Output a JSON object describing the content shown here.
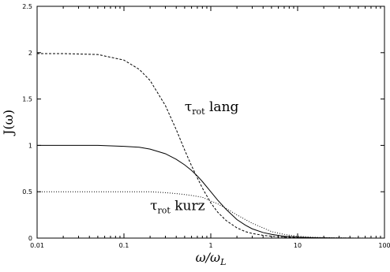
{
  "chart_data": {
    "type": "line",
    "xlabel": "ω/ω",
    "xlabel_sub": "L",
    "ylabel": "J(ω)",
    "xscale": "log",
    "xlim": [
      0.01,
      100
    ],
    "ylim": [
      0,
      2.5
    ],
    "xticks": [
      "0.01",
      "0.1",
      "1",
      "10",
      "100"
    ],
    "xtick_values": [
      0.01,
      0.1,
      1,
      10,
      100
    ],
    "yticks": [
      "0",
      "0.5",
      "1",
      "1.5",
      "2",
      "2.5"
    ],
    "ytick_values": [
      0,
      0.5,
      1,
      1.5,
      2,
      2.5
    ],
    "grid": false,
    "x": [
      0.01,
      0.02,
      0.05,
      0.1,
      0.15,
      0.2,
      0.3,
      0.4,
      0.5,
      0.6,
      0.7,
      0.8,
      1,
      1.2,
      1.5,
      2,
      2.5,
      3,
      4,
      5,
      7,
      10,
      15,
      20,
      30,
      50,
      100
    ],
    "series": [
      {
        "dash": "dashed",
        "values": [
          1.99,
          1.99,
          1.98,
          1.92,
          1.82,
          1.7,
          1.43,
          1.17,
          0.95,
          0.78,
          0.65,
          0.54,
          0.38,
          0.28,
          0.19,
          0.11,
          0.07,
          0.05,
          0.03,
          0.02,
          0.01,
          0.005,
          0.003,
          0.002,
          0.001,
          0,
          0
        ]
      },
      {
        "dash": "solid",
        "values": [
          1.0,
          1.0,
          1.0,
          0.99,
          0.98,
          0.96,
          0.91,
          0.85,
          0.79,
          0.73,
          0.67,
          0.61,
          0.5,
          0.41,
          0.31,
          0.2,
          0.14,
          0.1,
          0.06,
          0.04,
          0.02,
          0.01,
          0.004,
          0.002,
          0.001,
          0,
          0
        ]
      },
      {
        "dash": "dotted",
        "values": [
          0.5,
          0.5,
          0.5,
          0.5,
          0.5,
          0.5,
          0.49,
          0.48,
          0.47,
          0.46,
          0.45,
          0.44,
          0.4,
          0.37,
          0.32,
          0.25,
          0.2,
          0.16,
          0.11,
          0.07,
          0.04,
          0.02,
          0.01,
          0.006,
          0.003,
          0.001,
          0
        ]
      }
    ],
    "annotations": [
      {
        "tau": "τ",
        "sub": "rot",
        "text": "lang",
        "x": 0.5,
        "y": 1.37
      },
      {
        "tau": "τ",
        "sub": "rot",
        "text": "kurz",
        "x": 0.2,
        "y": 0.3
      }
    ]
  }
}
